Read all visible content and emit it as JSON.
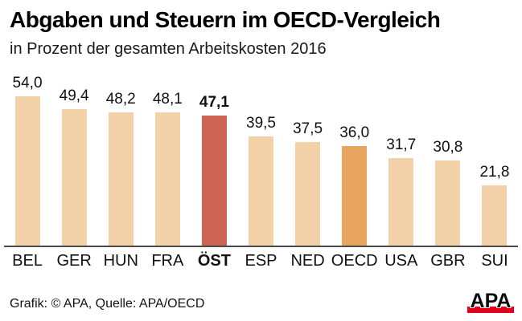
{
  "header": {
    "title": "Abgaben und Steuern im OECD-Vergleich",
    "subtitle": "in Prozent der gesamten Arbeitskosten 2016"
  },
  "chart_data": {
    "type": "bar",
    "title": "Abgaben und Steuern im OECD-Vergleich",
    "subtitle": "in Prozent der gesamten Arbeitskosten 2016",
    "categories": [
      "BEL",
      "GER",
      "HUN",
      "FRA",
      "ÖST",
      "ESP",
      "NED",
      "OECD",
      "USA",
      "GBR",
      "SUI"
    ],
    "values": [
      54.0,
      49.4,
      48.2,
      48.1,
      47.1,
      39.5,
      37.5,
      36.0,
      31.7,
      30.8,
      21.8
    ],
    "value_labels": [
      "54,0",
      "49,4",
      "48,2",
      "48,1",
      "47,1",
      "39,5",
      "37,5",
      "36,0",
      "31,7",
      "30,8",
      "21,8"
    ],
    "highlighted_category": "ÖST",
    "secondary_highlight_category": "OECD",
    "ylim": [
      0,
      60
    ],
    "grid": false,
    "legend": false,
    "colors": {
      "bar_default": "#f3d2aa",
      "bar_highlight": "#cb6452",
      "bar_secondary": "#e8a35e",
      "axis_line": "#4a4a4a",
      "text": "#111111"
    }
  },
  "footer": {
    "credit": "Grafik: © APA, Quelle: APA/OECD",
    "logo_text": "APA",
    "logo_bar_color": "#e2001a"
  }
}
